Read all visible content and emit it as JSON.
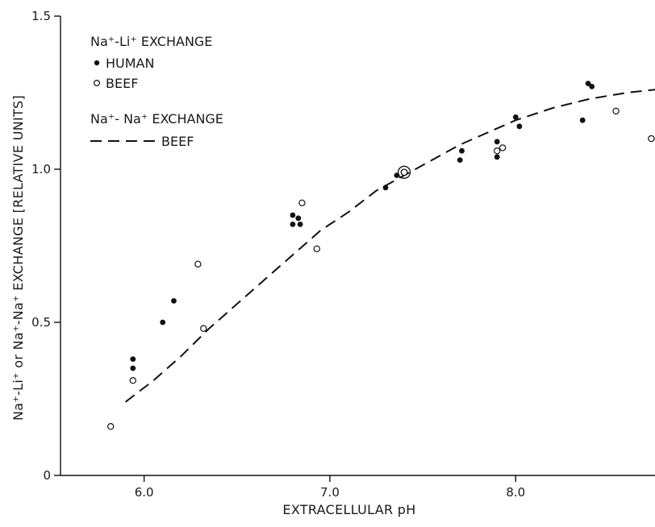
{
  "chart_data": {
    "type": "scatter",
    "title": "",
    "xlabel": "EXTRACELLULAR pH",
    "ylabel": "Na⁺-Li⁺ or Na⁺-Na⁺ EXCHANGE [RELATIVE UNITS]",
    "xlim": [
      5.55,
      8.75
    ],
    "ylim": [
      0,
      1.5
    ],
    "x_ticks": [
      6.0,
      7.0,
      8.0
    ],
    "x_tick_labels": [
      "6.0",
      "7.0",
      "8.0"
    ],
    "y_ticks": [
      0,
      0.5,
      1.0,
      1.5
    ],
    "y_tick_labels": [
      "0",
      "0.5",
      "1.0",
      "1.5"
    ],
    "grid": false,
    "legend_position": "top-left",
    "legend": {
      "group1_title": "Na⁺-Li⁺ EXCHANGE",
      "group2_title": "Na⁺- Na⁺ EXCHANGE"
    },
    "series": [
      {
        "name": "HUMAN",
        "group": "Na⁺-Li⁺ EXCHANGE",
        "marker": "filled-circle",
        "points": [
          [
            5.94,
            0.38
          ],
          [
            5.94,
            0.35
          ],
          [
            6.1,
            0.5
          ],
          [
            6.16,
            0.57
          ],
          [
            6.8,
            0.85
          ],
          [
            6.8,
            0.82
          ],
          [
            6.83,
            0.84
          ],
          [
            6.84,
            0.82
          ],
          [
            7.3,
            0.94
          ],
          [
            7.36,
            0.98
          ],
          [
            7.7,
            1.03
          ],
          [
            7.71,
            1.06
          ],
          [
            7.9,
            1.09
          ],
          [
            7.9,
            1.04
          ],
          [
            8.0,
            1.17
          ],
          [
            8.02,
            1.14
          ],
          [
            8.36,
            1.16
          ],
          [
            8.39,
            1.28
          ],
          [
            8.41,
            1.27
          ]
        ]
      },
      {
        "name": "BEEF",
        "group": "Na⁺-Li⁺ EXCHANGE",
        "marker": "open-circle",
        "points": [
          [
            5.82,
            0.16
          ],
          [
            5.94,
            0.31
          ],
          [
            6.29,
            0.69
          ],
          [
            6.32,
            0.48
          ],
          [
            6.85,
            0.89
          ],
          [
            6.93,
            0.74
          ],
          [
            7.4,
            0.99
          ],
          [
            7.9,
            1.06
          ],
          [
            7.93,
            1.07
          ],
          [
            8.54,
            1.19
          ],
          [
            8.73,
            1.1
          ]
        ]
      },
      {
        "name": "BEEF",
        "group": "Na⁺- Na⁺ EXCHANGE",
        "marker": "dashed-line",
        "points": [
          [
            5.9,
            0.24
          ],
          [
            6.05,
            0.31
          ],
          [
            6.2,
            0.39
          ],
          [
            6.35,
            0.48
          ],
          [
            6.5,
            0.56
          ],
          [
            6.65,
            0.64
          ],
          [
            6.8,
            0.72
          ],
          [
            6.95,
            0.8
          ],
          [
            7.1,
            0.86
          ],
          [
            7.25,
            0.93
          ],
          [
            7.4,
            0.98
          ],
          [
            7.55,
            1.03
          ],
          [
            7.7,
            1.08
          ],
          [
            7.85,
            1.12
          ],
          [
            8.0,
            1.16
          ],
          [
            8.2,
            1.2
          ],
          [
            8.4,
            1.23
          ],
          [
            8.6,
            1.25
          ],
          [
            8.75,
            1.26
          ]
        ]
      }
    ],
    "annotations": [
      {
        "type": "double-circle",
        "x": 7.4,
        "y": 0.99
      }
    ]
  }
}
